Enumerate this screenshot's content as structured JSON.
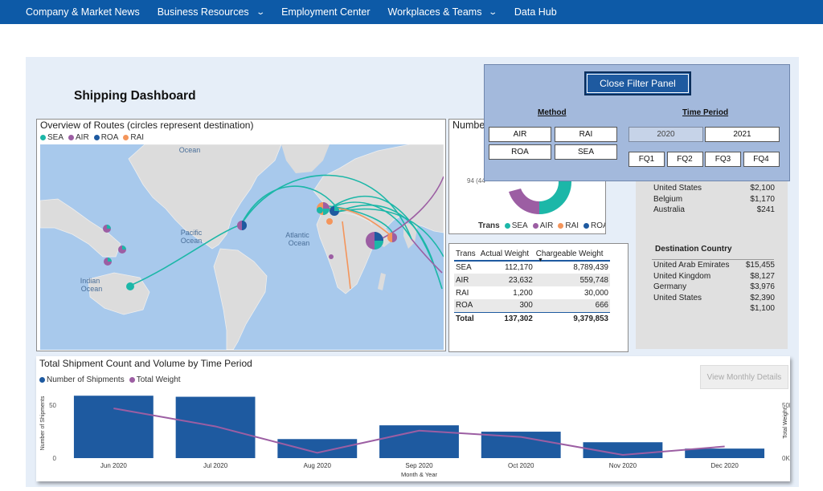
{
  "nav": {
    "items": [
      {
        "label": "Company & Market News",
        "has_chevron": false
      },
      {
        "label": "Business Resources",
        "has_chevron": true
      },
      {
        "label": "Employment Center",
        "has_chevron": false
      },
      {
        "label": "Workplaces & Teams",
        "has_chevron": true
      },
      {
        "label": "Data Hub",
        "has_chevron": false
      }
    ]
  },
  "dashboard": {
    "title": "Shipping Dashboard"
  },
  "colors": {
    "sea": "#1cb7a8",
    "air": "#9c5ea3",
    "roa": "#1e5aa0",
    "rai": "#f4955b",
    "nav": "#0d5aa7"
  },
  "map": {
    "title": "Overview of Routes (circles represent destination)",
    "legend": [
      {
        "label": "SEA",
        "color": "#1cb7a8"
      },
      {
        "label": "AIR",
        "color": "#9c5ea3"
      },
      {
        "label": "ROA",
        "color": "#1e5aa0"
      },
      {
        "label": "RAI",
        "color": "#f4955b"
      }
    ],
    "ocean_labels": [
      "Ocean",
      "Pacific",
      "Ocean",
      "Atlantic",
      "Ocean",
      "Indian",
      "Ocean"
    ]
  },
  "donut": {
    "title_fragment": "Numbe",
    "partial_label": "94 (44",
    "legend_title": "Trans",
    "legend": [
      {
        "label": "SEA",
        "color": "#1cb7a8"
      },
      {
        "label": "AIR",
        "color": "#9c5ea3"
      },
      {
        "label": "RAI",
        "color": "#f4955b"
      },
      {
        "label": "ROA",
        "color": "#1e5aa0"
      }
    ]
  },
  "weights_table": {
    "headers": [
      "Trans",
      "Actual Weight",
      "Chargeable Weight"
    ],
    "rows": [
      [
        "SEA",
        "112,170",
        "8,789,439"
      ],
      [
        "AIR",
        "23,632",
        "559,748"
      ],
      [
        "RAI",
        "1,200",
        "30,000"
      ],
      [
        "ROA",
        "300",
        "666"
      ]
    ],
    "total": [
      "Total",
      "137,302",
      "9,379,853"
    ]
  },
  "origin_values": [
    {
      "country": "United States",
      "value": "$2,100"
    },
    {
      "country": "Belgium",
      "value": "$1,170"
    },
    {
      "country": "Australia",
      "value": "$241"
    }
  ],
  "destination": {
    "title": "Destination Country",
    "rows": [
      {
        "country": "United Arab Emirates",
        "value": "$15,455"
      },
      {
        "country": "United Kingdom",
        "value": "$8,127"
      },
      {
        "country": "Germany",
        "value": "$3,976"
      },
      {
        "country": "United States",
        "value": "$2,390"
      },
      {
        "country": "",
        "value": "$1,100"
      }
    ]
  },
  "filter": {
    "close_label": "Close Filter Panel",
    "method_title": "Method",
    "methods": [
      {
        "label": "AIR",
        "selected": false
      },
      {
        "label": "RAI",
        "selected": false
      },
      {
        "label": "ROA",
        "selected": false
      },
      {
        "label": "SEA",
        "selected": false
      }
    ],
    "time_title": "Time Period",
    "years": [
      {
        "label": "2020",
        "selected": true
      },
      {
        "label": "2021",
        "selected": false
      }
    ],
    "quarters": [
      {
        "label": "FQ1",
        "selected": false
      },
      {
        "label": "FQ2",
        "selected": false
      },
      {
        "label": "FQ3",
        "selected": false
      },
      {
        "label": "FQ4",
        "selected": false
      }
    ]
  },
  "bottom": {
    "title": "Total Shipment Count and Volume by Time Period",
    "view_monthly_label": "View Monthly Details",
    "legend": [
      {
        "label": "Number of Shipments",
        "color": "#1e5aa0"
      },
      {
        "label": "Total Weight",
        "color": "#9c5ea3"
      }
    ]
  },
  "chart_data": {
    "type": "bar",
    "title": "Total Shipment Count and Volume by Time Period",
    "categories": [
      "Jun 2020",
      "Jul 2020",
      "Aug 2020",
      "Sep 2020",
      "Oct 2020",
      "Nov 2020",
      "Dec 2020"
    ],
    "series": [
      {
        "name": "Number of Shipments",
        "type": "bar",
        "axis": "left",
        "color": "#1e5aa0",
        "values": [
          59,
          58,
          18,
          31,
          25,
          15,
          9
        ]
      },
      {
        "name": "Total Weight",
        "type": "line",
        "axis": "right",
        "color": "#9c5ea3",
        "values": [
          47000,
          30000,
          5000,
          26000,
          20000,
          3000,
          11000
        ]
      }
    ],
    "xlabel": "Month & Year",
    "ylabel": "Number of Shipments",
    "y2label": "Total Weight",
    "ylim": [
      0,
      66
    ],
    "y2lim": [
      0,
      66000
    ],
    "yticks": [
      "0",
      "50"
    ],
    "y2ticks": [
      "0K",
      "50K"
    ],
    "grid": false,
    "legend_position": "top-left"
  }
}
